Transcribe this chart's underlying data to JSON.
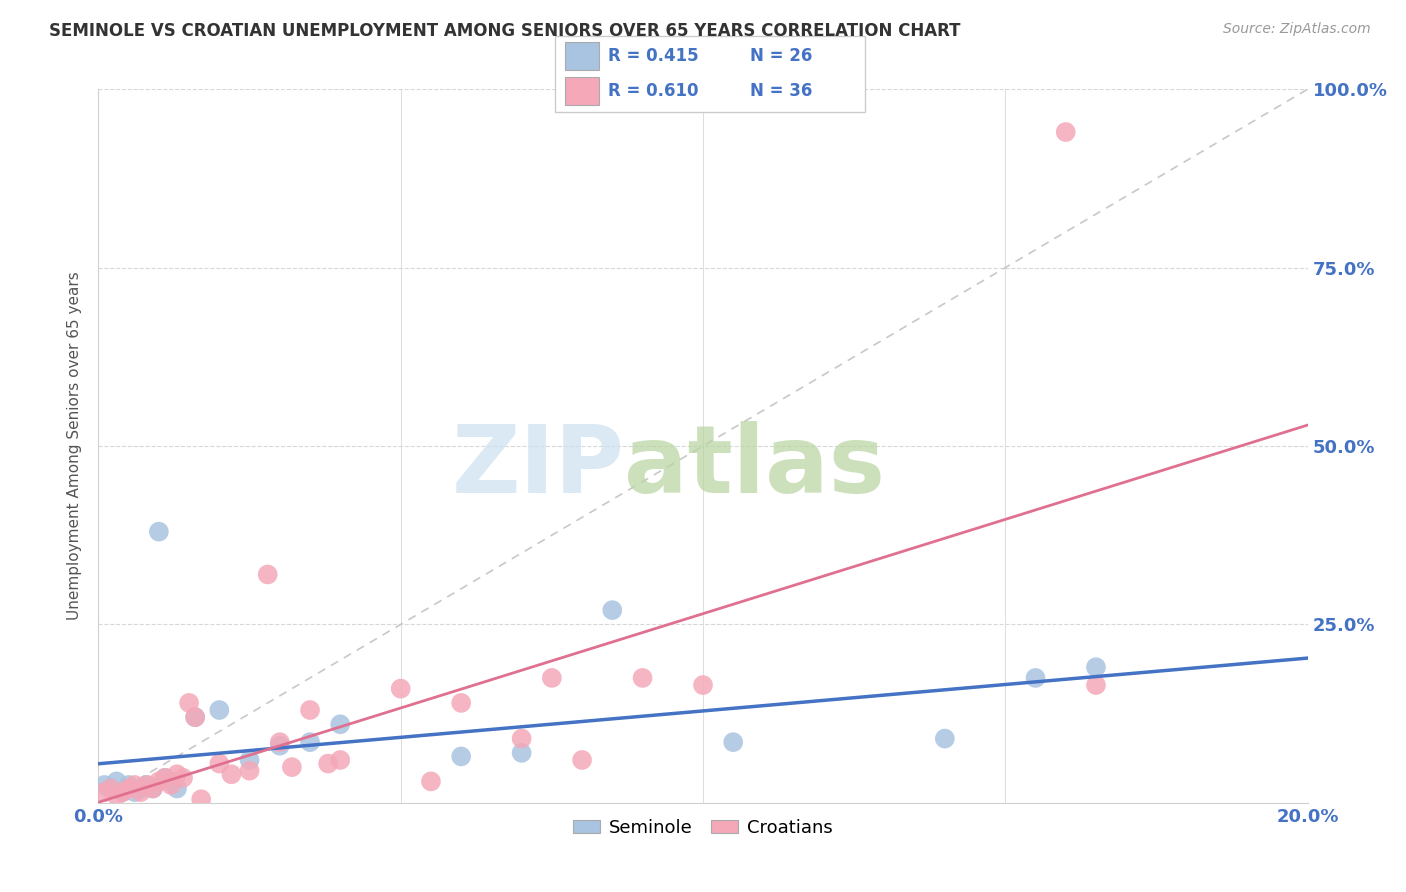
{
  "title": "SEMINOLE VS CROATIAN UNEMPLOYMENT AMONG SENIORS OVER 65 YEARS CORRELATION CHART",
  "source": "Source: ZipAtlas.com",
  "ylabel": "Unemployment Among Seniors over 65 years",
  "xlim": [
    0.0,
    0.2
  ],
  "ylim": [
    0.0,
    1.0
  ],
  "seminole_color": "#a8c4e0",
  "croatian_color": "#f4a8b8",
  "seminole_line_color": "#4472c4",
  "croatian_line_color": "#e07090",
  "diagonal_color": "#c8c8c8",
  "watermark_zip_color": "#cce0f0",
  "watermark_atlas_color": "#b8d4a0",
  "seminole_x": [
    0.001,
    0.002,
    0.003,
    0.004,
    0.005,
    0.006,
    0.007,
    0.008,
    0.009,
    0.01,
    0.011,
    0.012,
    0.013,
    0.016,
    0.02,
    0.025,
    0.03,
    0.035,
    0.04,
    0.06,
    0.07,
    0.085,
    0.105,
    0.14,
    0.155,
    0.165
  ],
  "seminole_y": [
    0.025,
    0.02,
    0.03,
    0.015,
    0.025,
    0.015,
    0.02,
    0.025,
    0.02,
    0.38,
    0.035,
    0.03,
    0.02,
    0.12,
    0.13,
    0.06,
    0.08,
    0.085,
    0.11,
    0.065,
    0.07,
    0.27,
    0.085,
    0.09,
    0.175,
    0.19
  ],
  "croatian_x": [
    0.001,
    0.002,
    0.003,
    0.004,
    0.005,
    0.006,
    0.007,
    0.008,
    0.009,
    0.01,
    0.011,
    0.012,
    0.013,
    0.014,
    0.015,
    0.016,
    0.017,
    0.02,
    0.022,
    0.025,
    0.028,
    0.03,
    0.032,
    0.035,
    0.038,
    0.04,
    0.05,
    0.055,
    0.06,
    0.07,
    0.075,
    0.08,
    0.09,
    0.1,
    0.16,
    0.165
  ],
  "croatian_y": [
    0.015,
    0.02,
    0.01,
    0.015,
    0.02,
    0.025,
    0.015,
    0.025,
    0.02,
    0.03,
    0.035,
    0.025,
    0.04,
    0.035,
    0.14,
    0.12,
    0.005,
    0.055,
    0.04,
    0.045,
    0.32,
    0.085,
    0.05,
    0.13,
    0.055,
    0.06,
    0.16,
    0.03,
    0.14,
    0.09,
    0.175,
    0.06,
    0.175,
    0.165,
    0.94,
    0.165
  ],
  "x_tick_positions": [
    0.0,
    0.05,
    0.1,
    0.15,
    0.2
  ],
  "x_tick_labels": [
    "0.0%",
    "",
    "",
    "",
    "20.0%"
  ],
  "y_tick_positions": [
    0.0,
    0.25,
    0.5,
    0.75,
    1.0
  ],
  "y_tick_labels_right": [
    "",
    "25.0%",
    "50.0%",
    "75.0%",
    "100.0%"
  ],
  "grid_color": "#d8d8d8",
  "title_fontsize": 12,
  "tick_fontsize": 13,
  "ylabel_fontsize": 11
}
